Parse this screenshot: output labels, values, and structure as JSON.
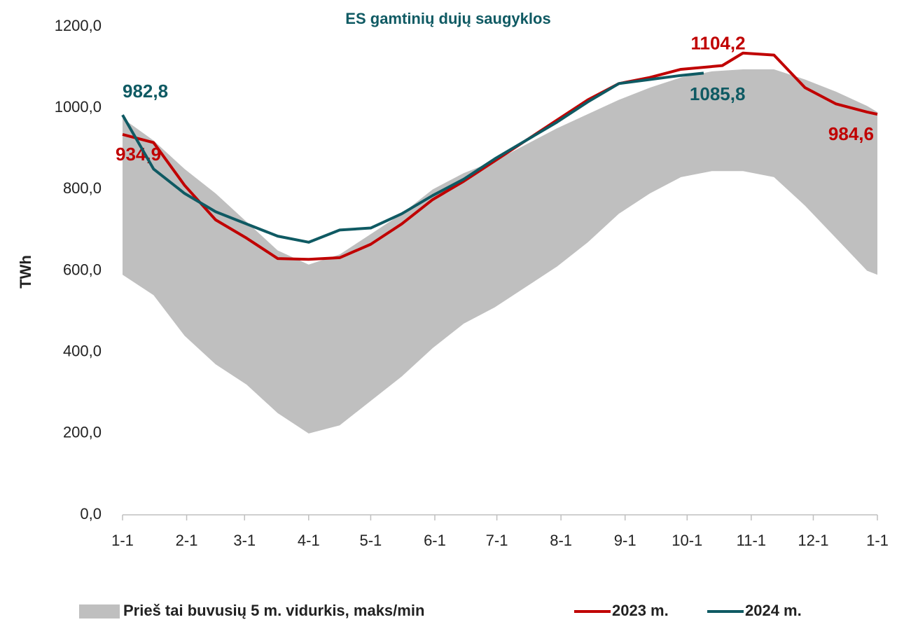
{
  "chart_data": {
    "type": "line",
    "title": "ES gamtinių dujų saugyklos",
    "y_label": "TWh",
    "xlim": [
      0,
      365
    ],
    "xticks": [
      {
        "value": 0,
        "label": "1-1"
      },
      {
        "value": 31,
        "label": "2-1"
      },
      {
        "value": 59,
        "label": "3-1"
      },
      {
        "value": 90,
        "label": "4-1"
      },
      {
        "value": 120,
        "label": "5-1"
      },
      {
        "value": 151,
        "label": "6-1"
      },
      {
        "value": 181,
        "label": "7-1"
      },
      {
        "value": 212,
        "label": "8-1"
      },
      {
        "value": 243,
        "label": "9-1"
      },
      {
        "value": 273,
        "label": "10-1"
      },
      {
        "value": 304,
        "label": "11-1"
      },
      {
        "value": 334,
        "label": "12-1"
      },
      {
        "value": 365,
        "label": "1-1"
      }
    ],
    "ylim": [
      0,
      1200
    ],
    "yticks": [
      {
        "value": 0,
        "label": "0,0"
      },
      {
        "value": 200,
        "label": "200,0"
      },
      {
        "value": 400,
        "label": "400,0"
      },
      {
        "value": 600,
        "label": "600,0"
      },
      {
        "value": 800,
        "label": "800,0"
      },
      {
        "value": 1000,
        "label": "1000,0"
      },
      {
        "value": 1200,
        "label": "1200,0"
      }
    ],
    "band": {
      "name": "Prieš tai buvusių 5 m. vidurkis, maks/min",
      "color": "#bfbfbf",
      "x": [
        0,
        15,
        30,
        45,
        60,
        75,
        90,
        105,
        120,
        135,
        150,
        165,
        180,
        195,
        210,
        225,
        240,
        255,
        270,
        285,
        300,
        315,
        330,
        345,
        360,
        365
      ],
      "high": [
        975,
        920,
        850,
        790,
        720,
        650,
        615,
        640,
        690,
        740,
        800,
        840,
        870,
        910,
        950,
        985,
        1020,
        1050,
        1075,
        1090,
        1095,
        1095,
        1070,
        1040,
        1005,
        990
      ],
      "low": [
        590,
        540,
        440,
        370,
        320,
        250,
        200,
        220,
        280,
        340,
        410,
        470,
        510,
        560,
        610,
        670,
        740,
        790,
        830,
        845,
        845,
        830,
        760,
        680,
        600,
        590
      ]
    },
    "series": [
      {
        "name": "2023 m.",
        "color": "#c00000",
        "x": [
          0,
          15,
          30,
          45,
          60,
          75,
          90,
          105,
          120,
          135,
          150,
          165,
          180,
          195,
          210,
          225,
          240,
          255,
          270,
          290,
          300,
          315,
          330,
          345,
          360,
          365
        ],
        "values": [
          934.9,
          915,
          810,
          725,
          680,
          630,
          628,
          632,
          665,
          715,
          775,
          820,
          870,
          920,
          970,
          1020,
          1060,
          1075,
          1095,
          1104.2,
          1135,
          1130,
          1050,
          1010,
          990,
          984.6
        ],
        "value_labels": [
          "934,9",
          null,
          null,
          null,
          null,
          null,
          null,
          null,
          null,
          null,
          null,
          null,
          null,
          null,
          null,
          null,
          null,
          null,
          null,
          "1104,2",
          null,
          null,
          null,
          null,
          null,
          "984,6"
        ]
      },
      {
        "name": "2024 m.",
        "color": "#0f5a63",
        "x": [
          0,
          15,
          30,
          45,
          60,
          75,
          90,
          105,
          120,
          135,
          150,
          165,
          180,
          195,
          210,
          225,
          240,
          255,
          270,
          281
        ],
        "values": [
          982.8,
          850,
          790,
          745,
          715,
          685,
          670,
          700,
          705,
          740,
          785,
          825,
          875,
          920,
          965,
          1015,
          1060,
          1070,
          1080,
          1085.8
        ],
        "value_labels": [
          "982,8",
          null,
          null,
          null,
          null,
          null,
          null,
          null,
          null,
          null,
          null,
          null,
          null,
          null,
          null,
          null,
          null,
          null,
          null,
          "1085,8"
        ]
      }
    ]
  }
}
